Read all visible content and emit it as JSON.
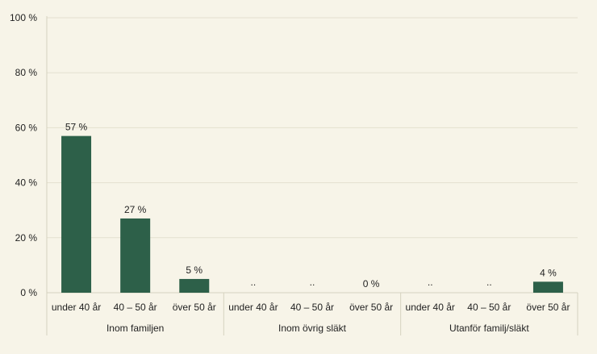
{
  "chart_data": {
    "type": "bar",
    "title": "",
    "xlabel": "",
    "ylabel": "",
    "ylim": [
      0,
      100
    ],
    "yticks": [
      {
        "value": 0,
        "label": "0 %"
      },
      {
        "value": 20,
        "label": "20 %"
      },
      {
        "value": 40,
        "label": "40 %"
      },
      {
        "value": 60,
        "label": "60 %"
      },
      {
        "value": 80,
        "label": "80 %"
      },
      {
        "value": 100,
        "label": "100 %"
      }
    ],
    "grid": true,
    "legend": "none",
    "bar_color": "#2d6049",
    "groups": [
      {
        "name": "Inom familjen",
        "categories": [
          "under 40 år",
          "40 – 50 år",
          "över 50 år"
        ],
        "values": [
          57,
          27,
          5
        ],
        "labels": [
          "57 %",
          "27 %",
          "5 %"
        ]
      },
      {
        "name": "Inom övrig släkt",
        "categories": [
          "under 40 år",
          "40 – 50 år",
          "över 50 år"
        ],
        "values": [
          null,
          null,
          0
        ],
        "labels": [
          "..",
          "..",
          "0 %"
        ]
      },
      {
        "name": "Utanför familj/släkt",
        "categories": [
          "under 40 år",
          "40 – 50 år",
          "över 50 år"
        ],
        "values": [
          null,
          null,
          4
        ],
        "labels": [
          "..",
          "..",
          "4 %"
        ]
      }
    ]
  }
}
